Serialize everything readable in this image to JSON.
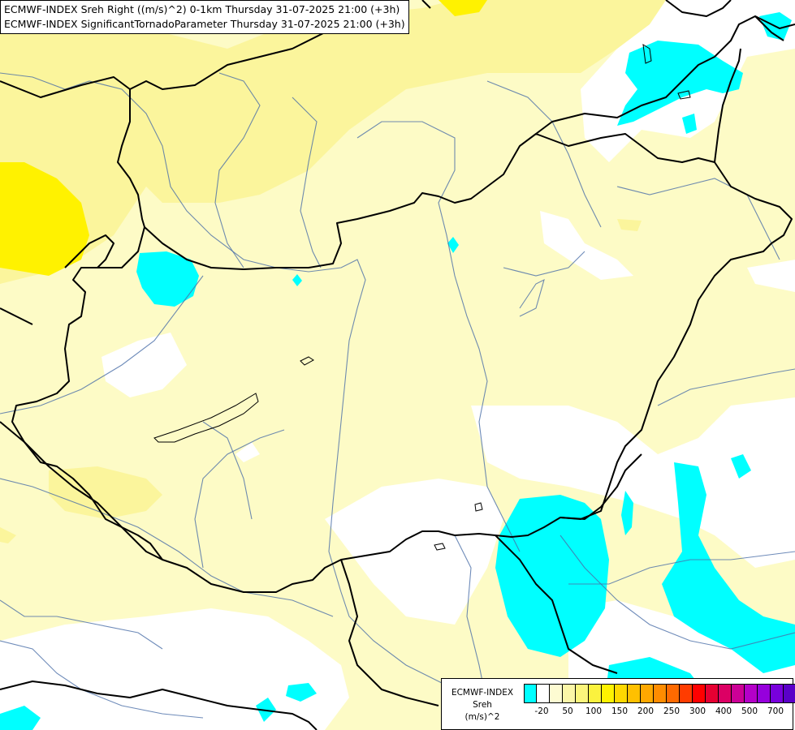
{
  "title": {
    "line1": "ECMWF-INDEX Sreh Right ((m/s)^2) 0-1km Thursday 31-07-2025 21:00 (+3h)",
    "line2": "ECMWF-INDEX SignificantTornadoParameter Thursday 31-07-2025 21:00 (+3h)"
  },
  "legend": {
    "title_line1": "ECMWF-INDEX",
    "title_line2": "Sreh",
    "title_line3": "(m/s)^2",
    "colors": [
      "#00ffff",
      "#ffffff",
      "#fdfbd2",
      "#fbf6a8",
      "#fbf57c",
      "#fbf23e",
      "#fff200",
      "#ffd800",
      "#ffc000",
      "#ffa800",
      "#ff8c00",
      "#ff6a00",
      "#ff3c00",
      "#ff0000",
      "#e60032",
      "#dc0064",
      "#cc0096",
      "#b400c8",
      "#9600dc",
      "#7800dc",
      "#5a00c8",
      "#3c0096",
      "#1e0064"
    ],
    "ticks": [
      "-20",
      "50",
      "100",
      "150",
      "200",
      "250",
      "300",
      "400",
      "500",
      "700"
    ]
  },
  "map": {
    "colors": {
      "background": "#ffffff",
      "pale_yellow": "#fdfbc6",
      "light_yellow": "#fbf59c",
      "yellow": "#fff200",
      "cyan": "#00ffff",
      "border": "#000000",
      "river": "#4a6ea8"
    }
  }
}
